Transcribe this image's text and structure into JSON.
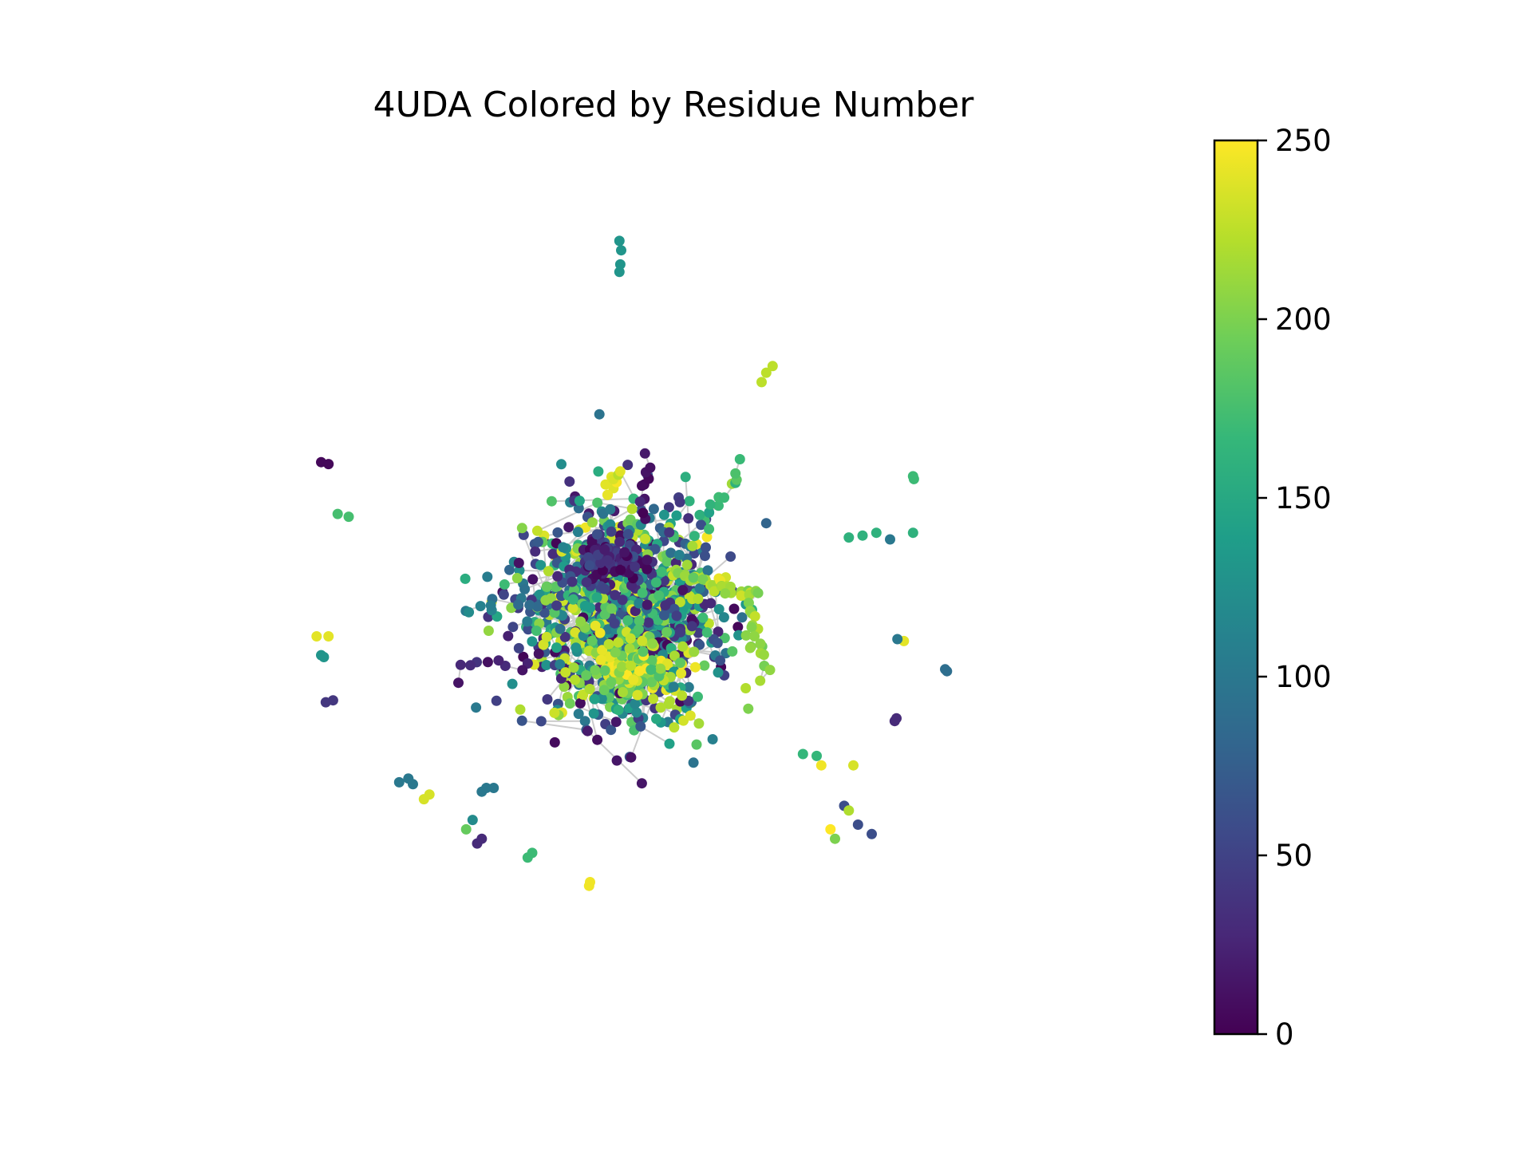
{
  "chart_data": {
    "type": "scatter",
    "title": "4UDA Colored by Residue Number",
    "xlabel": "",
    "ylabel": "",
    "axes_visible": false,
    "grid": false,
    "legend": "none",
    "edge_color": "#cccccc",
    "colormap": "viridis",
    "colormap_stops": [
      "#440154",
      "#482878",
      "#3e4989",
      "#31688e",
      "#26828e",
      "#1f9e89",
      "#35b779",
      "#6ece58",
      "#b5de2b",
      "#fde725"
    ],
    "colorbar": {
      "range": [
        0,
        250
      ],
      "ticks": [
        "0",
        "50",
        "100",
        "150",
        "200",
        "250"
      ],
      "placement": "right"
    },
    "node_count_approx": 1500,
    "value_range": [
      0,
      250
    ],
    "clusters": [
      {
        "cx": 0.0,
        "cy": 0.0,
        "rx": 1.0,
        "ry": 1.0,
        "n": 1050,
        "residue_mode": "mixed"
      },
      {
        "cx": -0.15,
        "cy": 0.55,
        "rx": 0.35,
        "ry": 0.25,
        "n": 120,
        "residue_mode": "low"
      },
      {
        "cx": 0.05,
        "cy": -0.55,
        "rx": 0.45,
        "ry": 0.25,
        "n": 140,
        "residue_mode": "high"
      }
    ],
    "branches": [
      {
        "from": [
          0.55,
          0.45
        ],
        "to": [
          1.45,
          0.15
        ],
        "n": 30,
        "residue": 215
      },
      {
        "from": [
          1.35,
          0.05
        ],
        "to": [
          1.55,
          -0.65
        ],
        "n": 18,
        "residue": 210
      },
      {
        "from": [
          0.85,
          0.85
        ],
        "to": [
          1.25,
          1.55
        ],
        "n": 12,
        "residue": 165
      },
      {
        "from": [
          -0.95,
          -0.5
        ],
        "to": [
          -1.85,
          -0.6
        ],
        "n": 10,
        "residue": 20
      },
      {
        "from": [
          -0.95,
          0.1
        ],
        "to": [
          -1.8,
          0.0
        ],
        "n": 10,
        "residue": 100
      },
      {
        "from": [
          0.35,
          -0.9
        ],
        "to": [
          0.75,
          -1.15
        ],
        "n": 8,
        "residue": 220
      },
      {
        "from": [
          -0.2,
          1.25
        ],
        "to": [
          -0.05,
          1.45
        ],
        "n": 10,
        "residue": 240
      },
      {
        "from": [
          0.2,
          1.0
        ],
        "to": [
          0.25,
          1.6
        ],
        "n": 10,
        "residue": 10
      }
    ],
    "outliers": [
      {
        "x": -3.3,
        "y": 1.6,
        "residue": 5
      },
      {
        "x": -3.22,
        "y": 1.58,
        "residue": 5
      },
      {
        "x": -3.12,
        "y": 1.05,
        "residue": 175
      },
      {
        "x": -3.0,
        "y": 1.02,
        "residue": 175
      },
      {
        "x": -3.35,
        "y": -0.25,
        "residue": 240
      },
      {
        "x": -3.22,
        "y": -0.25,
        "residue": 240
      },
      {
        "x": -3.3,
        "y": -0.45,
        "residue": 130
      },
      {
        "x": -3.27,
        "y": -0.47,
        "residue": 130
      },
      {
        "x": -3.25,
        "y": -0.95,
        "residue": 40
      },
      {
        "x": -3.17,
        "y": -0.93,
        "residue": 40
      },
      {
        "x": -2.45,
        "y": -1.8,
        "residue": 100
      },
      {
        "x": -2.35,
        "y": -1.76,
        "residue": 100
      },
      {
        "x": -2.3,
        "y": -1.82,
        "residue": 100
      },
      {
        "x": -2.18,
        "y": -1.98,
        "residue": 235
      },
      {
        "x": -2.12,
        "y": -1.93,
        "residue": 235
      },
      {
        "x": -1.55,
        "y": -1.9,
        "residue": 100
      },
      {
        "x": -1.5,
        "y": -1.86,
        "residue": 100
      },
      {
        "x": -1.42,
        "y": -1.86,
        "residue": 100
      },
      {
        "x": -1.72,
        "y": -2.3,
        "residue": 190
      },
      {
        "x": -1.65,
        "y": -2.2,
        "residue": 120
      },
      {
        "x": -1.6,
        "y": -2.45,
        "residue": 30
      },
      {
        "x": -1.55,
        "y": -2.4,
        "residue": 30
      },
      {
        "x": -1.05,
        "y": -2.6,
        "residue": 170
      },
      {
        "x": -1.0,
        "y": -2.55,
        "residue": 170
      },
      {
        "x": -0.38,
        "y": -2.9,
        "residue": 245
      },
      {
        "x": -0.37,
        "y": -2.86,
        "residue": 245
      },
      {
        "x": -0.05,
        "y": 3.95,
        "residue": 130
      },
      {
        "x": -0.03,
        "y": 3.85,
        "residue": 130
      },
      {
        "x": -0.04,
        "y": 3.7,
        "residue": 130
      },
      {
        "x": -0.05,
        "y": 3.62,
        "residue": 130
      },
      {
        "x": 1.55,
        "y": 2.55,
        "residue": 225
      },
      {
        "x": 1.62,
        "y": 2.62,
        "residue": 225
      },
      {
        "x": 1.5,
        "y": 2.45,
        "residue": 225
      },
      {
        "x": 3.15,
        "y": 1.45,
        "residue": 170
      },
      {
        "x": 3.16,
        "y": 1.42,
        "residue": 170
      },
      {
        "x": 2.45,
        "y": 0.8,
        "residue": 160
      },
      {
        "x": 2.6,
        "y": 0.82,
        "residue": 160
      },
      {
        "x": 2.75,
        "y": 0.85,
        "residue": 160
      },
      {
        "x": 2.9,
        "y": 0.78,
        "residue": 100
      },
      {
        "x": 3.15,
        "y": 0.85,
        "residue": 160
      },
      {
        "x": 3.05,
        "y": -0.3,
        "residue": 240
      },
      {
        "x": 2.98,
        "y": -0.28,
        "residue": 100
      },
      {
        "x": 3.5,
        "y": -0.6,
        "residue": 90
      },
      {
        "x": 3.52,
        "y": -0.62,
        "residue": 90
      },
      {
        "x": 2.95,
        "y": -1.15,
        "residue": 30
      },
      {
        "x": 2.97,
        "y": -1.12,
        "residue": 30
      },
      {
        "x": 1.95,
        "y": -1.5,
        "residue": 165
      },
      {
        "x": 2.1,
        "y": -1.52,
        "residue": 165
      },
      {
        "x": 2.15,
        "y": -1.62,
        "residue": 245
      },
      {
        "x": 2.5,
        "y": -1.62,
        "residue": 235
      },
      {
        "x": 2.4,
        "y": -2.05,
        "residue": 60
      },
      {
        "x": 2.45,
        "y": -2.1,
        "residue": 220
      },
      {
        "x": 2.55,
        "y": -2.25,
        "residue": 60
      },
      {
        "x": 2.7,
        "y": -2.35,
        "residue": 60
      },
      {
        "x": 2.25,
        "y": -2.3,
        "residue": 250
      },
      {
        "x": 2.3,
        "y": -2.4,
        "residue": 200
      }
    ]
  }
}
